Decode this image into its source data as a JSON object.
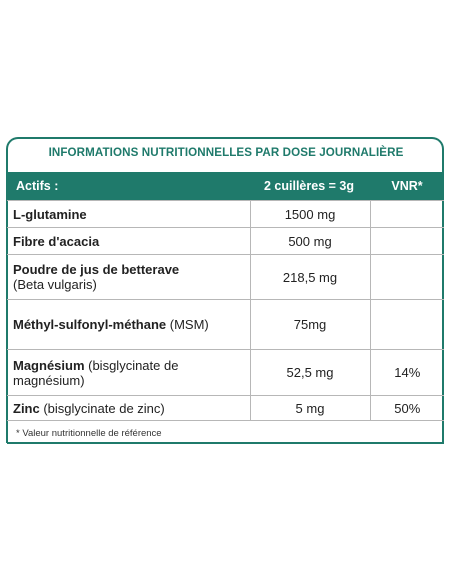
{
  "title": "INFORMATIONS NUTRITIONNELLES PAR DOSE JOURNALIÈRE",
  "columns": [
    "Actifs :",
    "2 cuillères = 3g",
    "VNR*"
  ],
  "rows": [
    {
      "name": "L-glutamine",
      "detail": "",
      "amount": "1500 mg",
      "vnr": ""
    },
    {
      "name": "Fibre d'acacia",
      "detail": "",
      "amount": "500 mg",
      "vnr": ""
    },
    {
      "name": "Poudre de jus de betterave",
      "detail": "(Beta vulgaris)",
      "amount": "218,5 mg",
      "vnr": ""
    },
    {
      "name": "Méthyl-sulfonyl-méthane",
      "detail": " (MSM)",
      "amount": "75mg",
      "vnr": ""
    },
    {
      "name": "Magnésium",
      "detail": " (bisglycinate de magnésium)",
      "amount": "52,5 mg",
      "vnr": "14%"
    },
    {
      "name": "Zinc",
      "detail": " (bisglycinate de zinc)",
      "amount": "5 mg",
      "vnr": "50%"
    }
  ],
  "footnote": "* Valeur nutritionnelle de référence",
  "colors": {
    "accent": "#1f7a6b"
  }
}
